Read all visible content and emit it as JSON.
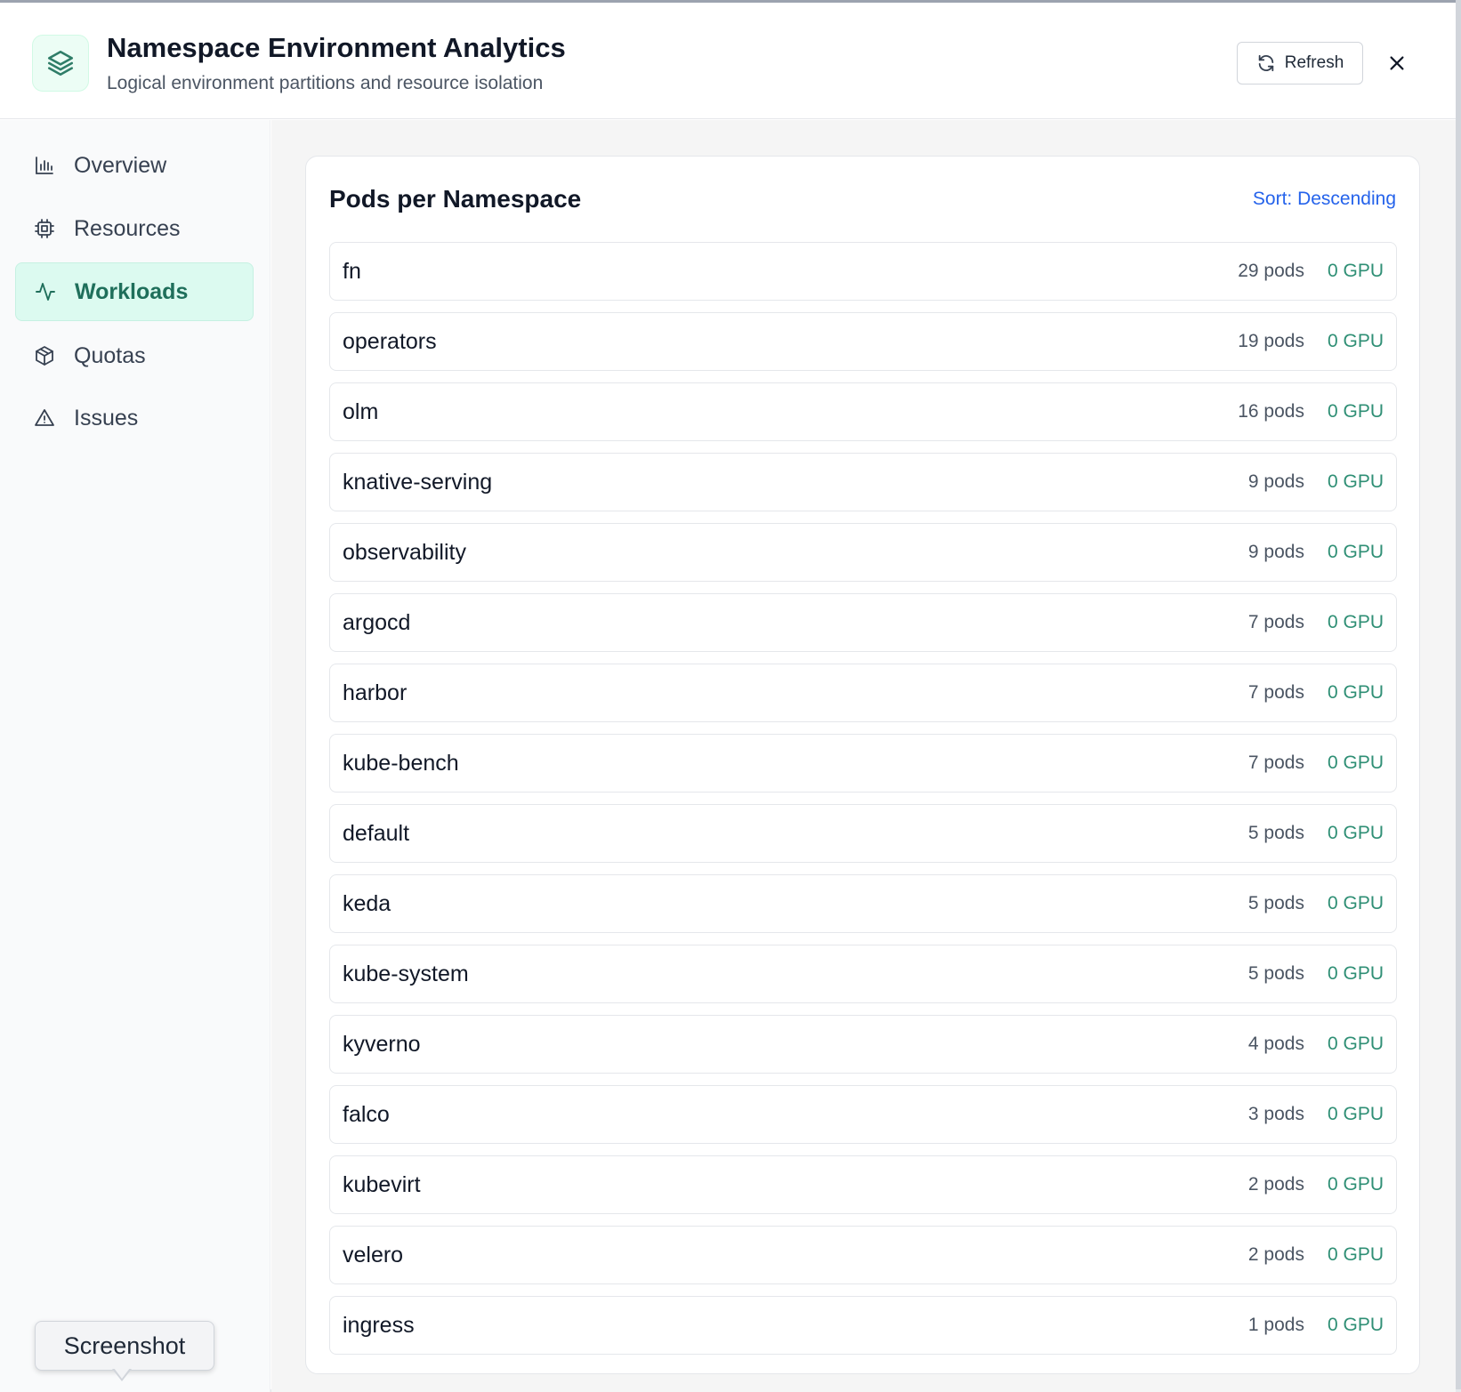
{
  "header": {
    "title": "Namespace Environment Analytics",
    "subtitle": "Logical environment partitions and resource isolation",
    "refresh_label": "Refresh",
    "app_icon": "layers-icon"
  },
  "sidebar": {
    "items": [
      {
        "label": "Overview",
        "icon": "bar-chart-icon",
        "active": false
      },
      {
        "label": "Resources",
        "icon": "cpu-icon",
        "active": false
      },
      {
        "label": "Workloads",
        "icon": "activity-icon",
        "active": true
      },
      {
        "label": "Quotas",
        "icon": "package-icon",
        "active": false
      },
      {
        "label": "Issues",
        "icon": "alert-triangle-icon",
        "active": false
      }
    ]
  },
  "tooltip": {
    "label": "Screenshot"
  },
  "main": {
    "card_title": "Pods per Namespace",
    "sort_label": "Sort: Descending",
    "namespaces": [
      {
        "name": "fn",
        "pods": "29 pods",
        "gpu": "0 GPU"
      },
      {
        "name": "operators",
        "pods": "19 pods",
        "gpu": "0 GPU"
      },
      {
        "name": "olm",
        "pods": "16 pods",
        "gpu": "0 GPU"
      },
      {
        "name": "knative-serving",
        "pods": "9 pods",
        "gpu": "0 GPU"
      },
      {
        "name": "observability",
        "pods": "9 pods",
        "gpu": "0 GPU"
      },
      {
        "name": "argocd",
        "pods": "7 pods",
        "gpu": "0 GPU"
      },
      {
        "name": "harbor",
        "pods": "7 pods",
        "gpu": "0 GPU"
      },
      {
        "name": "kube-bench",
        "pods": "7 pods",
        "gpu": "0 GPU"
      },
      {
        "name": "default",
        "pods": "5 pods",
        "gpu": "0 GPU"
      },
      {
        "name": "keda",
        "pods": "5 pods",
        "gpu": "0 GPU"
      },
      {
        "name": "kube-system",
        "pods": "5 pods",
        "gpu": "0 GPU"
      },
      {
        "name": "kyverno",
        "pods": "4 pods",
        "gpu": "0 GPU"
      },
      {
        "name": "falco",
        "pods": "3 pods",
        "gpu": "0 GPU"
      },
      {
        "name": "kubevirt",
        "pods": "2 pods",
        "gpu": "0 GPU"
      },
      {
        "name": "velero",
        "pods": "2 pods",
        "gpu": "0 GPU"
      },
      {
        "name": "ingress",
        "pods": "1 pods",
        "gpu": "0 GPU"
      }
    ]
  },
  "colors": {
    "accent": "#1f6f5b",
    "accent_bg": "#dcfaf0",
    "link": "#2563eb",
    "gpu_text": "#2f8f75"
  }
}
